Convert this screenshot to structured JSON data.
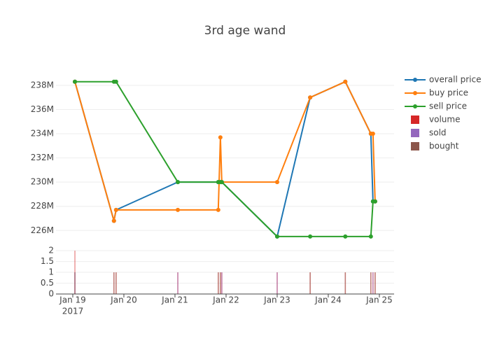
{
  "chart_data": [
    {
      "type": "line",
      "title": "3rd age wand",
      "x": [
        "2017-01-19T01:00",
        "2017-01-19T19:20",
        "2017-01-19T20:20",
        "2017-01-21T01:20",
        "2017-01-21T20:20",
        "2017-01-21T21:20",
        "2017-01-21T22:00",
        "2017-01-23T00:00",
        "2017-01-23T15:30",
        "2017-01-24T08:00",
        "2017-01-24T20:00",
        "2017-01-24T21:00",
        "2017-01-24T22:00"
      ],
      "series": [
        {
          "name": "overall price",
          "color": "#1f77b4",
          "values": [
            238300000,
            226800000,
            227700000,
            230000000,
            230000000,
            230000000,
            230000000,
            225500000,
            237000000,
            238300000,
            234000000,
            228400000,
            228400000
          ]
        },
        {
          "name": "buy price",
          "color": "#ff7f0e",
          "values": [
            238300000,
            226800000,
            227700000,
            227700000,
            227700000,
            233700000,
            230000000,
            230000000,
            237000000,
            238300000,
            234000000,
            234000000,
            228400000
          ]
        },
        {
          "name": "sell price",
          "color": "#2ca02c",
          "values": [
            238300000,
            238300000,
            238300000,
            230000000,
            230000000,
            230000000,
            230000000,
            225500000,
            225500000,
            225500000,
            225500000,
            228400000,
            228400000
          ]
        }
      ],
      "xlim": [
        "2017-01-18T16:07",
        "2017-01-25T06:55"
      ],
      "ylim": [
        224800000,
        239500000
      ],
      "yticks": [
        {
          "value": 226000000,
          "label": "226M"
        },
        {
          "value": 228000000,
          "label": "228M"
        },
        {
          "value": 230000000,
          "label": "230M"
        },
        {
          "value": 232000000,
          "label": "232M"
        },
        {
          "value": 234000000,
          "label": "234M"
        },
        {
          "value": 236000000,
          "label": "236M"
        },
        {
          "value": 238000000,
          "label": "238M"
        }
      ],
      "grid": true
    },
    {
      "type": "bar",
      "x": [
        "2017-01-19T01:00",
        "2017-01-19T19:20",
        "2017-01-19T20:20",
        "2017-01-21T01:20",
        "2017-01-21T20:20",
        "2017-01-21T21:20",
        "2017-01-21T22:00",
        "2017-01-23T00:00",
        "2017-01-23T15:30",
        "2017-01-24T08:00",
        "2017-01-24T20:00",
        "2017-01-24T21:00",
        "2017-01-24T22:00"
      ],
      "series": [
        {
          "name": "volume",
          "color": "#d62728",
          "values": [
            2,
            1,
            1,
            1,
            1,
            1,
            1,
            1,
            1,
            1,
            1,
            1,
            1
          ]
        },
        {
          "name": "sold",
          "color": "#9467bd",
          "values": [
            1,
            0,
            0,
            1,
            0,
            0,
            1,
            1,
            0,
            0,
            0,
            1,
            0
          ]
        },
        {
          "name": "bought",
          "color": "#8c564b",
          "values": [
            1,
            1,
            1,
            0,
            1,
            1,
            0,
            0,
            1,
            1,
            1,
            0,
            1
          ]
        }
      ],
      "xlim": [
        "2017-01-18T16:07",
        "2017-01-25T06:55"
      ],
      "xticks": [
        {
          "value": "2017-01-19T00:00",
          "label": "Jan 19"
        },
        {
          "value": "2017-01-20T00:00",
          "label": "Jan 20"
        },
        {
          "value": "2017-01-21T00:00",
          "label": "Jan 21"
        },
        {
          "value": "2017-01-22T00:00",
          "label": "Jan 22"
        },
        {
          "value": "2017-01-23T00:00",
          "label": "Jan 23"
        },
        {
          "value": "2017-01-24T00:00",
          "label": "Jan 24"
        },
        {
          "value": "2017-01-25T00:00",
          "label": "Jan 25"
        }
      ],
      "x_year_label": "2017",
      "ylim": [
        0,
        2.1
      ],
      "yticks": [
        0,
        0.5,
        1,
        1.5,
        2
      ],
      "grid": true
    }
  ]
}
